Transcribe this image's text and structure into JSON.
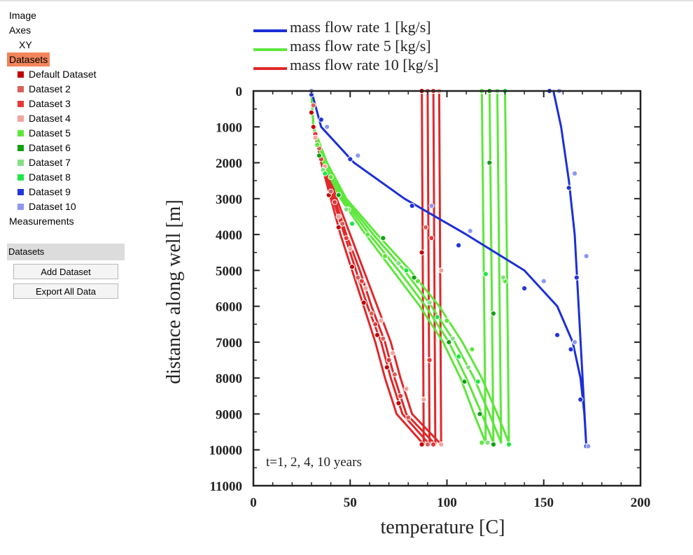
{
  "sidebar": {
    "tree": {
      "image": "Image",
      "axes": "Axes",
      "xy": "XY",
      "datasets": "Datasets",
      "measurements": "Measurements"
    },
    "datasets": [
      {
        "label": "Default Dataset",
        "color": "#c00000"
      },
      {
        "label": "Dataset 2",
        "color": "#d9605a"
      },
      {
        "label": "Dataset 3",
        "color": "#e23a3a"
      },
      {
        "label": "Dataset 4",
        "color": "#f2a49c"
      },
      {
        "label": "Dataset 5",
        "color": "#5ee63c"
      },
      {
        "label": "Dataset 6",
        "color": "#12a012"
      },
      {
        "label": "Dataset 7",
        "color": "#82e082"
      },
      {
        "label": "Dataset 8",
        "color": "#1ee648"
      },
      {
        "label": "Dataset 9",
        "color": "#2236d6"
      },
      {
        "label": "Dataset 10",
        "color": "#8c98f0"
      }
    ],
    "panel": {
      "title": "Datasets",
      "add_button": "Add Dataset",
      "export_button": "Export All Data"
    }
  },
  "chart_data": {
    "type": "line",
    "xlabel": "temperature [C]",
    "ylabel": "distance along well [m]",
    "xlim": [
      0,
      200
    ],
    "ylim": [
      0,
      11000
    ],
    "y_inverted": true,
    "xticks": [
      "0",
      "50",
      "100",
      "150",
      "200"
    ],
    "yticks": [
      "0",
      "1000",
      "2000",
      "3000",
      "4000",
      "5000",
      "6000",
      "7000",
      "8000",
      "9000",
      "10000",
      "11000"
    ],
    "annotation": "t=1, 2, 4, 10 years",
    "legend_position": "top-left (outside plot)",
    "legend": [
      {
        "label": "mass flow rate 1 [kg/s]",
        "color": "#1c2fd6"
      },
      {
        "label": "mass flow rate 5 [kg/s]",
        "color": "#5ee63c"
      },
      {
        "label": "mass flow rate 10 [kg/s]",
        "color": "#e0282a"
      }
    ],
    "series": [
      {
        "group": "mass flow rate 10 [kg/s]",
        "color": "#e0282a",
        "points": [
          [
            30,
            0
          ],
          [
            31,
            1000
          ],
          [
            35,
            2000
          ],
          [
            40,
            3000
          ],
          [
            45,
            4000
          ],
          [
            51,
            5000
          ],
          [
            57,
            6000
          ],
          [
            63,
            7000
          ],
          [
            68,
            8000
          ],
          [
            74,
            9000
          ],
          [
            88,
            9850
          ],
          [
            87,
            0
          ]
        ]
      },
      {
        "group": "mass flow rate 10 [kg/s]",
        "color": "#e0282a",
        "points": [
          [
            30,
            0
          ],
          [
            31,
            1000
          ],
          [
            36,
            2000
          ],
          [
            41,
            3000
          ],
          [
            47,
            4000
          ],
          [
            53,
            5000
          ],
          [
            59,
            6000
          ],
          [
            66,
            7000
          ],
          [
            71,
            8000
          ],
          [
            77,
            9000
          ],
          [
            91,
            9850
          ],
          [
            90,
            0
          ]
        ]
      },
      {
        "group": "mass flow rate 10 [kg/s]",
        "color": "#e0282a",
        "points": [
          [
            30,
            0
          ],
          [
            31,
            1000
          ],
          [
            37,
            2000
          ],
          [
            42,
            3000
          ],
          [
            48,
            4000
          ],
          [
            55,
            5000
          ],
          [
            61,
            6000
          ],
          [
            68,
            7000
          ],
          [
            73,
            8000
          ],
          [
            79,
            9000
          ],
          [
            94,
            9850
          ],
          [
            93,
            0
          ]
        ]
      },
      {
        "group": "mass flow rate 10 [kg/s]",
        "color": "#e0282a",
        "points": [
          [
            30,
            0
          ],
          [
            31,
            1000
          ],
          [
            37,
            2000
          ],
          [
            43,
            3000
          ],
          [
            50,
            4000
          ],
          [
            57,
            5000
          ],
          [
            64,
            6000
          ],
          [
            71,
            7000
          ],
          [
            76,
            8000
          ],
          [
            82,
            9000
          ],
          [
            97,
            9850
          ],
          [
            96,
            0
          ]
        ]
      },
      {
        "group": "mass flow rate 5 [kg/s]",
        "color": "#5ee63c",
        "points": [
          [
            30,
            0
          ],
          [
            31,
            1000
          ],
          [
            36,
            2000
          ],
          [
            45,
            3000
          ],
          [
            58,
            4000
          ],
          [
            72,
            5000
          ],
          [
            86,
            6000
          ],
          [
            98,
            7000
          ],
          [
            107,
            8000
          ],
          [
            114,
            9000
          ],
          [
            120,
            9800
          ],
          [
            118,
            0
          ]
        ]
      },
      {
        "group": "mass flow rate 5 [kg/s]",
        "color": "#5ee63c",
        "points": [
          [
            30,
            0
          ],
          [
            31,
            1000
          ],
          [
            37,
            2000
          ],
          [
            46,
            3000
          ],
          [
            60,
            4000
          ],
          [
            75,
            5000
          ],
          [
            89,
            6000
          ],
          [
            101,
            7000
          ],
          [
            110,
            8000
          ],
          [
            118,
            9000
          ],
          [
            124,
            9800
          ],
          [
            122,
            0
          ]
        ]
      },
      {
        "group": "mass flow rate 5 [kg/s]",
        "color": "#5ee63c",
        "points": [
          [
            30,
            0
          ],
          [
            31,
            1000
          ],
          [
            37,
            2000
          ],
          [
            47,
            3000
          ],
          [
            62,
            4000
          ],
          [
            78,
            5000
          ],
          [
            92,
            6000
          ],
          [
            104,
            7000
          ],
          [
            114,
            8000
          ],
          [
            122,
            9000
          ],
          [
            128,
            9800
          ],
          [
            126,
            0
          ]
        ]
      },
      {
        "group": "mass flow rate 5 [kg/s]",
        "color": "#5ee63c",
        "points": [
          [
            30,
            0
          ],
          [
            31,
            1000
          ],
          [
            38,
            2000
          ],
          [
            48,
            3000
          ],
          [
            64,
            4000
          ],
          [
            81,
            5000
          ],
          [
            96,
            6000
          ],
          [
            108,
            7000
          ],
          [
            118,
            8000
          ],
          [
            126,
            9000
          ],
          [
            132,
            9800
          ],
          [
            130,
            0
          ]
        ]
      },
      {
        "group": "mass flow rate 1 [kg/s]",
        "color": "#1c2fd6",
        "points": [
          [
            30,
            0
          ],
          [
            35,
            1000
          ],
          [
            52,
            2000
          ],
          [
            78,
            3000
          ],
          [
            110,
            4000
          ],
          [
            140,
            5000
          ],
          [
            157,
            6000
          ],
          [
            165,
            7000
          ],
          [
            169,
            8000
          ],
          [
            171,
            9000
          ],
          [
            172,
            9900
          ],
          [
            166,
            4000
          ],
          [
            163,
            2500
          ],
          [
            159,
            1000
          ],
          [
            155,
            0
          ]
        ]
      }
    ],
    "markers": [
      {
        "dataset": 0,
        "points": [
          [
            87,
            0
          ],
          [
            30,
            600
          ],
          [
            31,
            1000
          ],
          [
            34,
            1800
          ],
          [
            39,
            2900
          ],
          [
            44,
            3800
          ],
          [
            51,
            4900
          ],
          [
            57,
            5900
          ],
          [
            64,
            6800
          ],
          [
            69,
            7700
          ],
          [
            75,
            8700
          ],
          [
            87,
            9850
          ],
          [
            87,
            4500
          ]
        ]
      },
      {
        "dataset": 1,
        "points": [
          [
            90,
            0
          ],
          [
            31,
            400
          ],
          [
            34,
            1600
          ],
          [
            40,
            2800
          ],
          [
            46,
            3700
          ],
          [
            54,
            5200
          ],
          [
            61,
            6200
          ],
          [
            67,
            6900
          ],
          [
            73,
            7900
          ],
          [
            80,
            9100
          ],
          [
            90,
            9850
          ],
          [
            89,
            3800
          ]
        ]
      },
      {
        "dataset": 2,
        "points": [
          [
            93,
            0
          ],
          [
            32,
            1200
          ],
          [
            35,
            1900
          ],
          [
            42,
            3100
          ],
          [
            48,
            4100
          ],
          [
            56,
            5300
          ],
          [
            63,
            6500
          ],
          [
            70,
            7500
          ],
          [
            76,
            8500
          ],
          [
            93,
            9850
          ],
          [
            91,
            7500
          ],
          [
            92,
            4100
          ]
        ]
      },
      {
        "dataset": 3,
        "points": [
          [
            96,
            0
          ],
          [
            32,
            1300
          ],
          [
            37,
            2100
          ],
          [
            44,
            3500
          ],
          [
            50,
            4400
          ],
          [
            58,
            5500
          ],
          [
            66,
            6400
          ],
          [
            72,
            7300
          ],
          [
            79,
            8300
          ],
          [
            88,
            8600
          ],
          [
            97,
            9850
          ],
          [
            97,
            5000
          ]
        ]
      },
      {
        "dataset": 4,
        "points": [
          [
            118,
            0
          ],
          [
            33,
            1500
          ],
          [
            40,
            2400
          ],
          [
            49,
            3300
          ],
          [
            59,
            4000
          ],
          [
            68,
            4600
          ],
          [
            85,
            5300
          ],
          [
            100,
            6400
          ],
          [
            113,
            7200
          ],
          [
            118,
            9800
          ],
          [
            130,
            5300
          ]
        ]
      },
      {
        "dataset": 5,
        "points": [
          [
            122,
            0
          ],
          [
            34,
            1800
          ],
          [
            44,
            2900
          ],
          [
            67,
            4100
          ],
          [
            83,
            5200
          ],
          [
            101,
            7000
          ],
          [
            109,
            8100
          ],
          [
            117,
            9000
          ],
          [
            124,
            9850
          ],
          [
            122,
            2000
          ],
          [
            124,
            6200
          ]
        ]
      },
      {
        "dataset": 6,
        "points": [
          [
            126,
            0
          ],
          [
            36,
            2200
          ],
          [
            48,
            3300
          ],
          [
            75,
            4800
          ],
          [
            91,
            5900
          ],
          [
            103,
            6900
          ],
          [
            111,
            7700
          ],
          [
            121,
            9800
          ],
          [
            126,
            0
          ],
          [
            129,
            5200
          ]
        ]
      },
      {
        "dataset": 7,
        "points": [
          [
            130,
            0
          ],
          [
            37,
            2300
          ],
          [
            51,
            3700
          ],
          [
            79,
            5000
          ],
          [
            95,
            6300
          ],
          [
            106,
            7400
          ],
          [
            116,
            8100
          ],
          [
            132,
            9850
          ],
          [
            120,
            5100
          ]
        ]
      },
      {
        "dataset": 8,
        "points": [
          [
            153,
            0
          ],
          [
            30,
            100
          ],
          [
            35,
            800
          ],
          [
            50,
            1900
          ],
          [
            82,
            3200
          ],
          [
            106,
            4300
          ],
          [
            140,
            5500
          ],
          [
            157,
            6800
          ],
          [
            164,
            7200
          ],
          [
            169,
            8600
          ],
          [
            172,
            9900
          ],
          [
            167,
            5200
          ],
          [
            163,
            2700
          ]
        ]
      },
      {
        "dataset": 9,
        "points": [
          [
            30,
            0
          ],
          [
            158,
            0
          ],
          [
            38,
            1000
          ],
          [
            54,
            1800
          ],
          [
            92,
            3200
          ],
          [
            112,
            3900
          ],
          [
            150,
            5300
          ],
          [
            172,
            4600
          ],
          [
            166,
            2300
          ],
          [
            166,
            7000
          ],
          [
            173,
            9900
          ]
        ]
      }
    ]
  }
}
